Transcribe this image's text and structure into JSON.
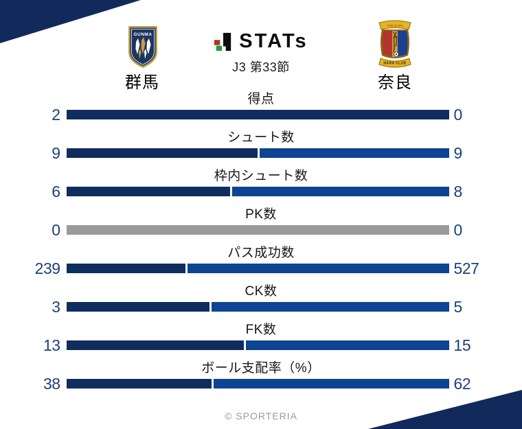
{
  "header": {
    "stats_logo_text": "STATs",
    "league_round": "J3 第33節",
    "home_team": {
      "name": "群馬",
      "logo_text": "GUNMA"
    },
    "away_team": {
      "name": "奈良",
      "logo_top_text": "Pride of nara",
      "logo_bottom_text": "NARA CLUB"
    }
  },
  "colors": {
    "corner_triangle": "#12295b",
    "home_bar": "#0f2d5e",
    "away_bar": "#0d4493",
    "neutral_bar": "#9a9a9a",
    "number_text": "#1d4079",
    "stats_icon_red": "#b0321f",
    "stats_icon_green": "#1e9e48"
  },
  "chart_data": {
    "type": "bar",
    "orientation": "horizontal-paired",
    "title": "STATs J3 第33節",
    "categories": [
      "得点",
      "シュート数",
      "枠内シュート数",
      "PK数",
      "パス成功数",
      "CK数",
      "FK数",
      "ボール支配率（%）"
    ],
    "series": [
      {
        "name": "群馬",
        "values": [
          2,
          9,
          6,
          0,
          239,
          3,
          13,
          38
        ]
      },
      {
        "name": "奈良",
        "values": [
          0,
          9,
          8,
          0,
          527,
          5,
          15,
          62
        ]
      }
    ],
    "legend_position": "top",
    "note": "each bar split at home/(home+away); rows where both values are 0 render as a solid gray bar"
  },
  "footer": {
    "credit": "© SPORTERIA"
  }
}
